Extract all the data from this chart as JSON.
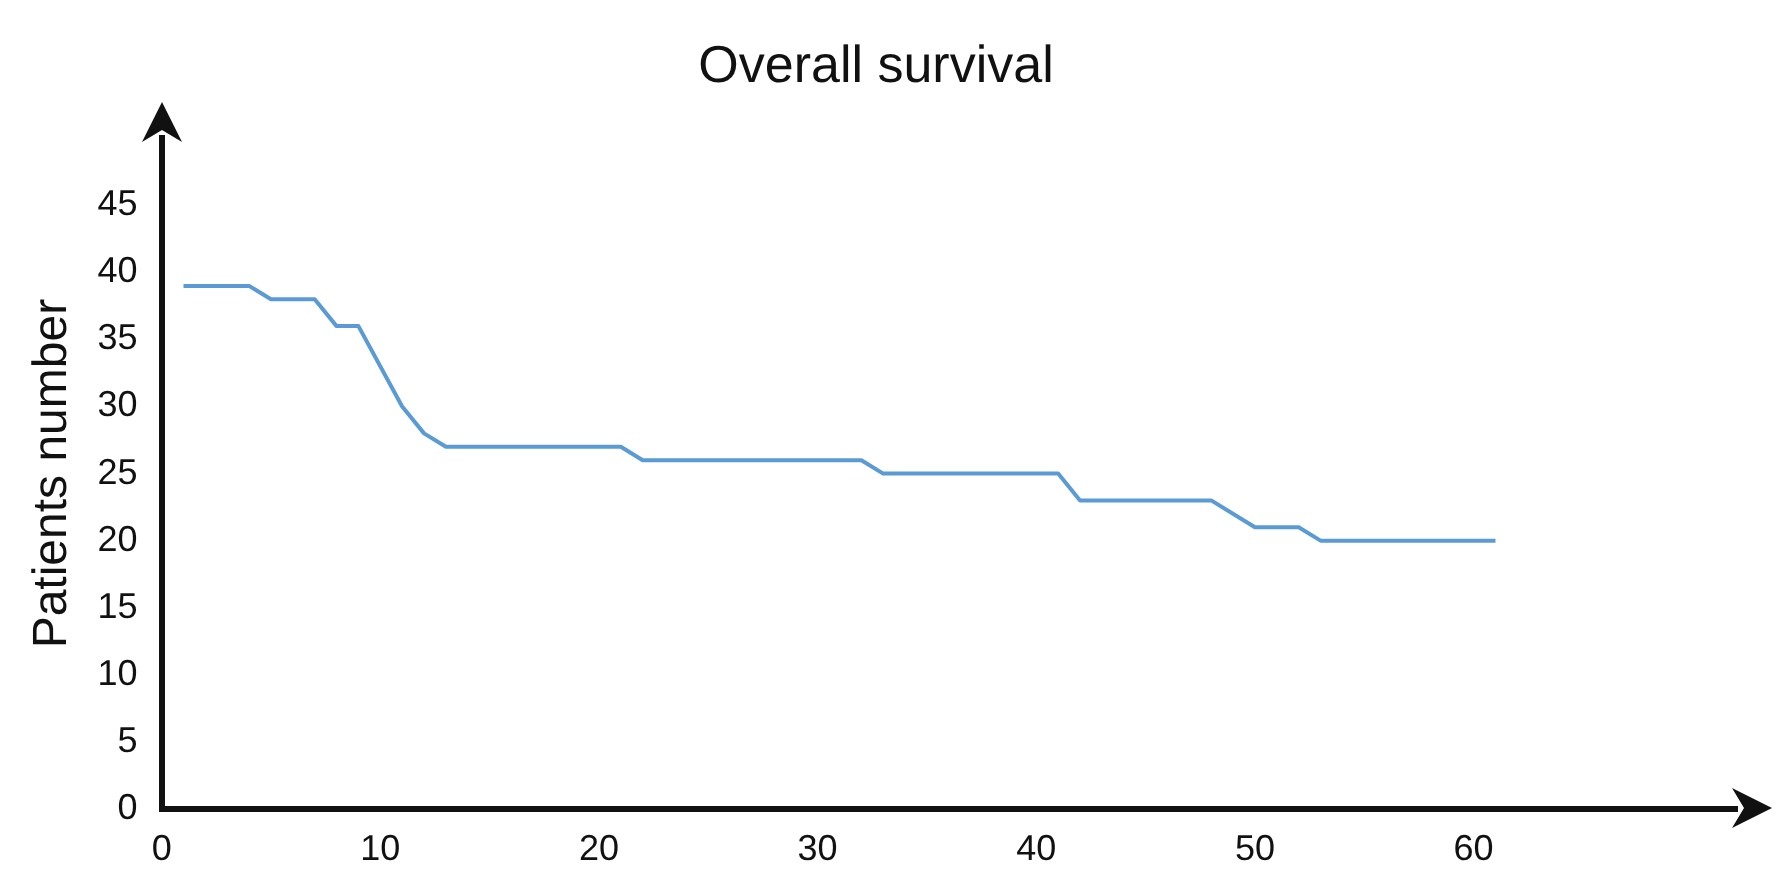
{
  "chart_data": {
    "type": "line",
    "title": "Overall survival",
    "ylabel": "Patients number",
    "x": [
      1,
      4,
      5,
      7,
      8,
      9,
      11,
      12,
      13,
      21,
      22,
      32,
      33,
      41,
      42,
      48,
      50,
      52,
      53,
      61
    ],
    "series": [
      {
        "color": "#5b9bd5",
        "values": [
          39,
          39,
          38,
          38,
          36,
          36,
          30,
          28,
          27,
          27,
          26,
          26,
          25,
          25,
          23,
          23,
          21,
          21,
          20,
          20
        ]
      }
    ],
    "xlim": [
      0,
      72
    ],
    "xticks": [
      0,
      10,
      20,
      30,
      40,
      50,
      60
    ],
    "ylim": [
      0,
      50
    ],
    "yticks": [
      0,
      5,
      10,
      15,
      20,
      25,
      30,
      35,
      40,
      45
    ],
    "grid": false,
    "legend": false,
    "marker": "none",
    "line_style": "solid"
  }
}
